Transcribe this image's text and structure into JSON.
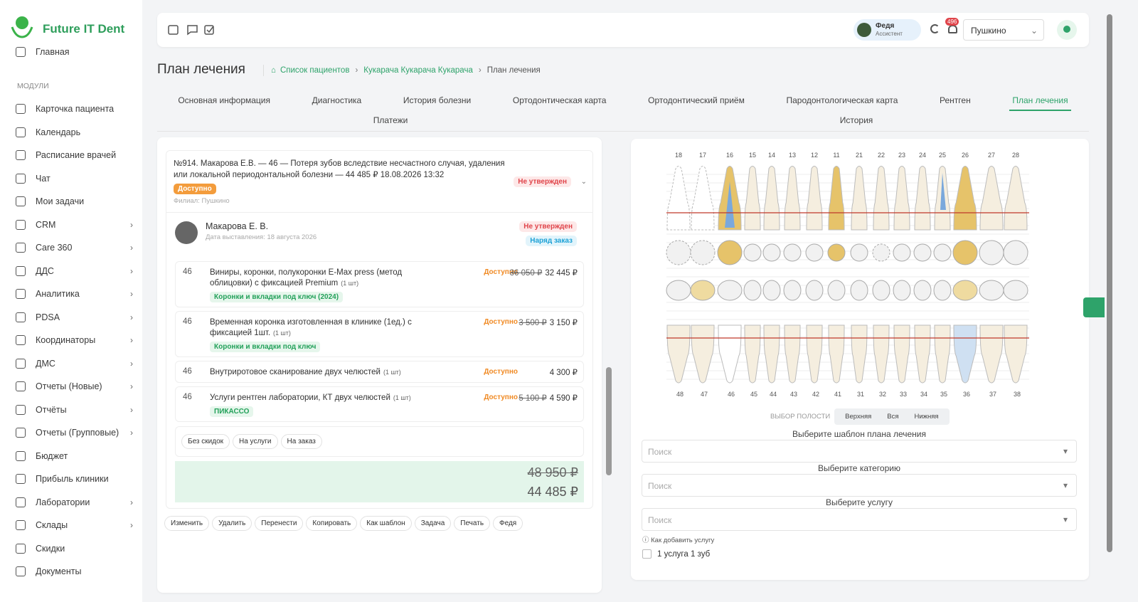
{
  "sidebar": {
    "brand": "Future IT Dent",
    "home": "Главная",
    "section": "МОДУЛИ",
    "items": [
      {
        "label": "Карточка пациента",
        "submenu": false
      },
      {
        "label": "Календарь",
        "submenu": false
      },
      {
        "label": "Расписание врачей",
        "submenu": false
      },
      {
        "label": "Чат",
        "submenu": false
      },
      {
        "label": "Мои задачи",
        "submenu": false
      },
      {
        "label": "CRM",
        "submenu": true
      },
      {
        "label": "Care 360",
        "submenu": true
      },
      {
        "label": "ДДС",
        "submenu": true
      },
      {
        "label": "Аналитика",
        "submenu": true
      },
      {
        "label": "PDSA",
        "submenu": true
      },
      {
        "label": "Координаторы",
        "submenu": true
      },
      {
        "label": "ДМС",
        "submenu": true
      },
      {
        "label": "Отчеты (Новые)",
        "submenu": true
      },
      {
        "label": "Отчёты",
        "submenu": true
      },
      {
        "label": "Отчеты (Групповые)",
        "submenu": true
      },
      {
        "label": "Бюджет",
        "submenu": false
      },
      {
        "label": "Прибыль клиники",
        "submenu": false
      },
      {
        "label": "Лаборатории",
        "submenu": true
      },
      {
        "label": "Склады",
        "submenu": true
      },
      {
        "label": "Скидки",
        "submenu": false
      },
      {
        "label": "Документы",
        "submenu": false
      }
    ]
  },
  "topbar": {
    "user_name": "Федя",
    "user_role": "Ассистент",
    "notifications": "496",
    "branch": "Пушкино"
  },
  "header": {
    "title": "План лечения",
    "breadcrumb": [
      "Список пациентов",
      "Кукарача Кукарача Кукарача",
      "План лечения"
    ]
  },
  "tabs": {
    "items": [
      "Основная информация",
      "Диагностика",
      "История болезни",
      "Ортодонтическая карта",
      "Ортодонтический приём",
      "Пародонтологическая карта",
      "Рентген",
      "План лечения",
      "Платежи",
      "История"
    ],
    "active": 7
  },
  "plan": {
    "heading": "№914. Макарова Е.В. — 46 — Потеря зубов вследствие несчастного случая, удаления или локальной периодонтальной болезни — 44 485 ₽ 18.08.2026 13:32",
    "status": "Не утвержден",
    "availability": "Доступно",
    "branch": "Филиал: Пушкино",
    "patient": "Макарова Е. В.",
    "date": "Дата выставления: 18 августа 2026",
    "patient_status": "Не утвержден",
    "order": "Наряд заказ",
    "services": [
      {
        "tooth": "46",
        "name": "Виниры, коронки, полукоронки E-Max press (метод облицовки) с фиксацией Premium",
        "qty": "(1 шт)",
        "status": "Доступно",
        "old_price": "36 050 ₽",
        "price": "32 445 ₽",
        "tag": "Коронки и вкладки под ключ (2024)"
      },
      {
        "tooth": "46",
        "name": "Временная коронка изготовленная в клинике (1ед.) с фиксацией 1шт.",
        "qty": "(1 шт)",
        "status": "Доступно",
        "old_price": "3 500 ₽",
        "price": "3 150 ₽",
        "tag": "Коронки и вкладки под ключ"
      },
      {
        "tooth": "46",
        "name": "Внутриротовое сканирование двух челюстей",
        "qty": "(1 шт)",
        "status": "Доступно",
        "price": "4 300 ₽"
      },
      {
        "tooth": "46",
        "name": "Услуги рентген лаборатории, КТ двух челюстей",
        "qty": "(1 шт)",
        "status": "Доступно",
        "old_price": "5 100 ₽",
        "price": "4 590 ₽",
        "tag": "ПИКАССО"
      }
    ],
    "discounts": [
      "Без скидок",
      "На услуги",
      "На заказ"
    ],
    "total_old": "48 950 ₽",
    "total": "44 485 ₽",
    "actions": [
      "Изменить",
      "Удалить",
      "Перенести",
      "Копировать",
      "Как шаблон",
      "Задача",
      "Печать",
      "Федя"
    ]
  },
  "dental": {
    "upper": [
      "18",
      "17",
      "16",
      "15",
      "14",
      "13",
      "12",
      "11",
      "21",
      "22",
      "23",
      "24",
      "25",
      "26",
      "27",
      "28"
    ],
    "lower": [
      "48",
      "47",
      "46",
      "45",
      "44",
      "43",
      "42",
      "41",
      "31",
      "32",
      "33",
      "34",
      "35",
      "36",
      "37",
      "38"
    ],
    "jaw_label": "ВЫБОР ПОЛОСТИ",
    "jaw_options": [
      "Верхняя",
      "Вся",
      "Нижняя"
    ],
    "fields": [
      {
        "label": "Выберите шаблон плана лечения",
        "placeholder": "Поиск"
      },
      {
        "label": "Выберите категорию",
        "placeholder": "Поиск"
      },
      {
        "label": "Выберите услугу",
        "placeholder": "Поиск"
      }
    ],
    "help": "Как добавить услугу",
    "checkbox": "1 услуга 1 зуб"
  }
}
